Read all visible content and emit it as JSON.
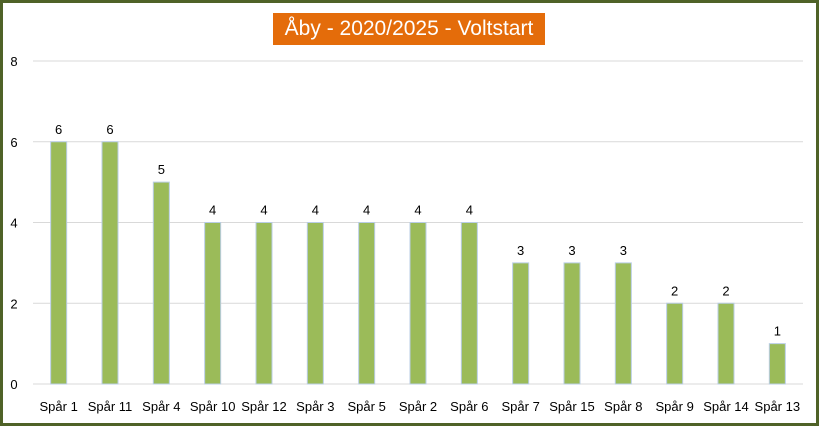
{
  "chart_data": {
    "type": "bar",
    "title": "Åby - 2020/2025 - Voltstart",
    "categories": [
      "Spår 1",
      "Spår 11",
      "Spår 4",
      "Spår 10",
      "Spår 12",
      "Spår 3",
      "Spår 5",
      "Spår 2",
      "Spår 6",
      "Spår 7",
      "Spår 15",
      "Spår 8",
      "Spår 9",
      "Spår 14",
      "Spår 13"
    ],
    "values": [
      6,
      6,
      5,
      4,
      4,
      4,
      4,
      4,
      4,
      3,
      3,
      3,
      2,
      2,
      1
    ],
    "ylim": [
      0,
      8
    ],
    "yticks": [
      0,
      2,
      4,
      6,
      8
    ],
    "grid": true,
    "data_labels": true,
    "colors": {
      "bar": "#9bbb59",
      "bar_edge": "#b9cde5",
      "title_bg": "#e46c0a",
      "title_text": "#ffffff",
      "frame": "#4f6228",
      "grid": "#d9d9d9"
    }
  }
}
